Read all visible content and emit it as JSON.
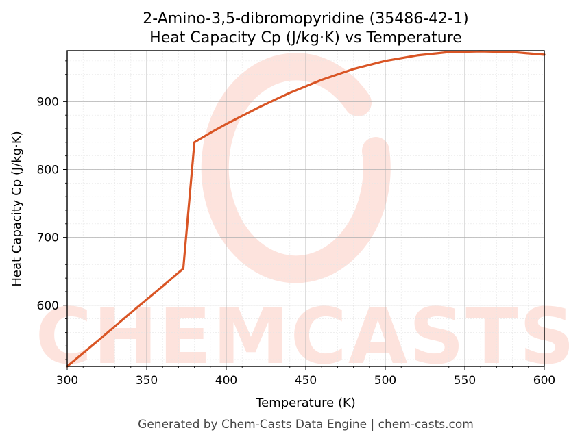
{
  "chart_data": {
    "type": "line",
    "title": "2-Amino-3,5-dibromopyridine (35486-42-1)",
    "subtitle": "Heat Capacity Cp (J/kg·K) vs Temperature",
    "xlabel": "Temperature (K)",
    "ylabel": "Heat Capacity Cp (J/kg·K)",
    "xlim": [
      300,
      600
    ],
    "ylim": [
      510,
      975
    ],
    "xticks": [
      300,
      350,
      400,
      450,
      500,
      550,
      600
    ],
    "yticks": [
      600,
      700,
      800,
      900
    ],
    "grid": true,
    "series": [
      {
        "color": "#d95525",
        "x": [
          300,
          320,
          340,
          360,
          373,
          380,
          390,
          400,
          420,
          440,
          460,
          480,
          500,
          520,
          540,
          560,
          580,
          600
        ],
        "y": [
          510,
          549,
          589,
          628,
          654,
          840,
          854,
          867,
          891,
          913,
          932,
          948,
          960,
          968,
          973,
          974,
          973,
          969
        ]
      }
    ]
  },
  "watermark": {
    "text": "CHEMCASTS",
    "color": "#fde3dd"
  },
  "footer": {
    "text": "Generated by Chem-Casts Data Engine | chem-casts.com"
  }
}
